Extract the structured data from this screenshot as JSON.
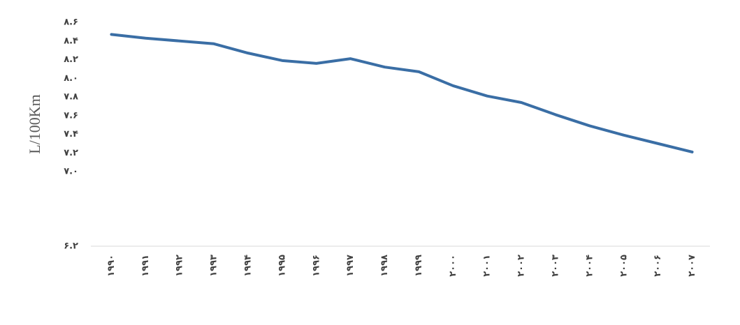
{
  "chart_data": {
    "type": "line",
    "y_label": "L/100Km",
    "categories": [
      "۱۹۹۰",
      "۱۹۹۱",
      "۱۹۹۲",
      "۱۹۹۳",
      "۱۹۹۴",
      "۱۹۹۵",
      "۱۹۹۶",
      "۱۹۹۷",
      "۱۹۹۸",
      "۱۹۹۹",
      "۲۰۰۰",
      "۲۰۰۱",
      "۲۰۰۲",
      "۲۰۰۳",
      "۲۰۰۴",
      "۲۰۰۵",
      "۲۰۰۶",
      "۲۰۰۷"
    ],
    "values": [
      8.47,
      8.43,
      8.4,
      8.37,
      8.27,
      8.19,
      8.16,
      8.21,
      8.12,
      8.07,
      7.92,
      7.81,
      7.74,
      7.61,
      7.49,
      7.39,
      7.3,
      7.21
    ],
    "color": "#3a6ea5",
    "ylim": [
      6.2,
      8.6
    ],
    "yticks": [
      {
        "value": 6.2,
        "label": "۶.۲"
      },
      {
        "value": 7.0,
        "label": "۷.۰"
      },
      {
        "value": 7.2,
        "label": "۷.۲"
      },
      {
        "value": 7.4,
        "label": "۷.۴"
      },
      {
        "value": 7.6,
        "label": "۷.۶"
      },
      {
        "value": 7.8,
        "label": "۷.۸"
      },
      {
        "value": 8.0,
        "label": "۸.۰"
      },
      {
        "value": 8.2,
        "label": "۸.۲"
      },
      {
        "value": 8.4,
        "label": "۸.۴"
      },
      {
        "value": 8.6,
        "label": "۸.۶"
      }
    ],
    "grid": false
  }
}
